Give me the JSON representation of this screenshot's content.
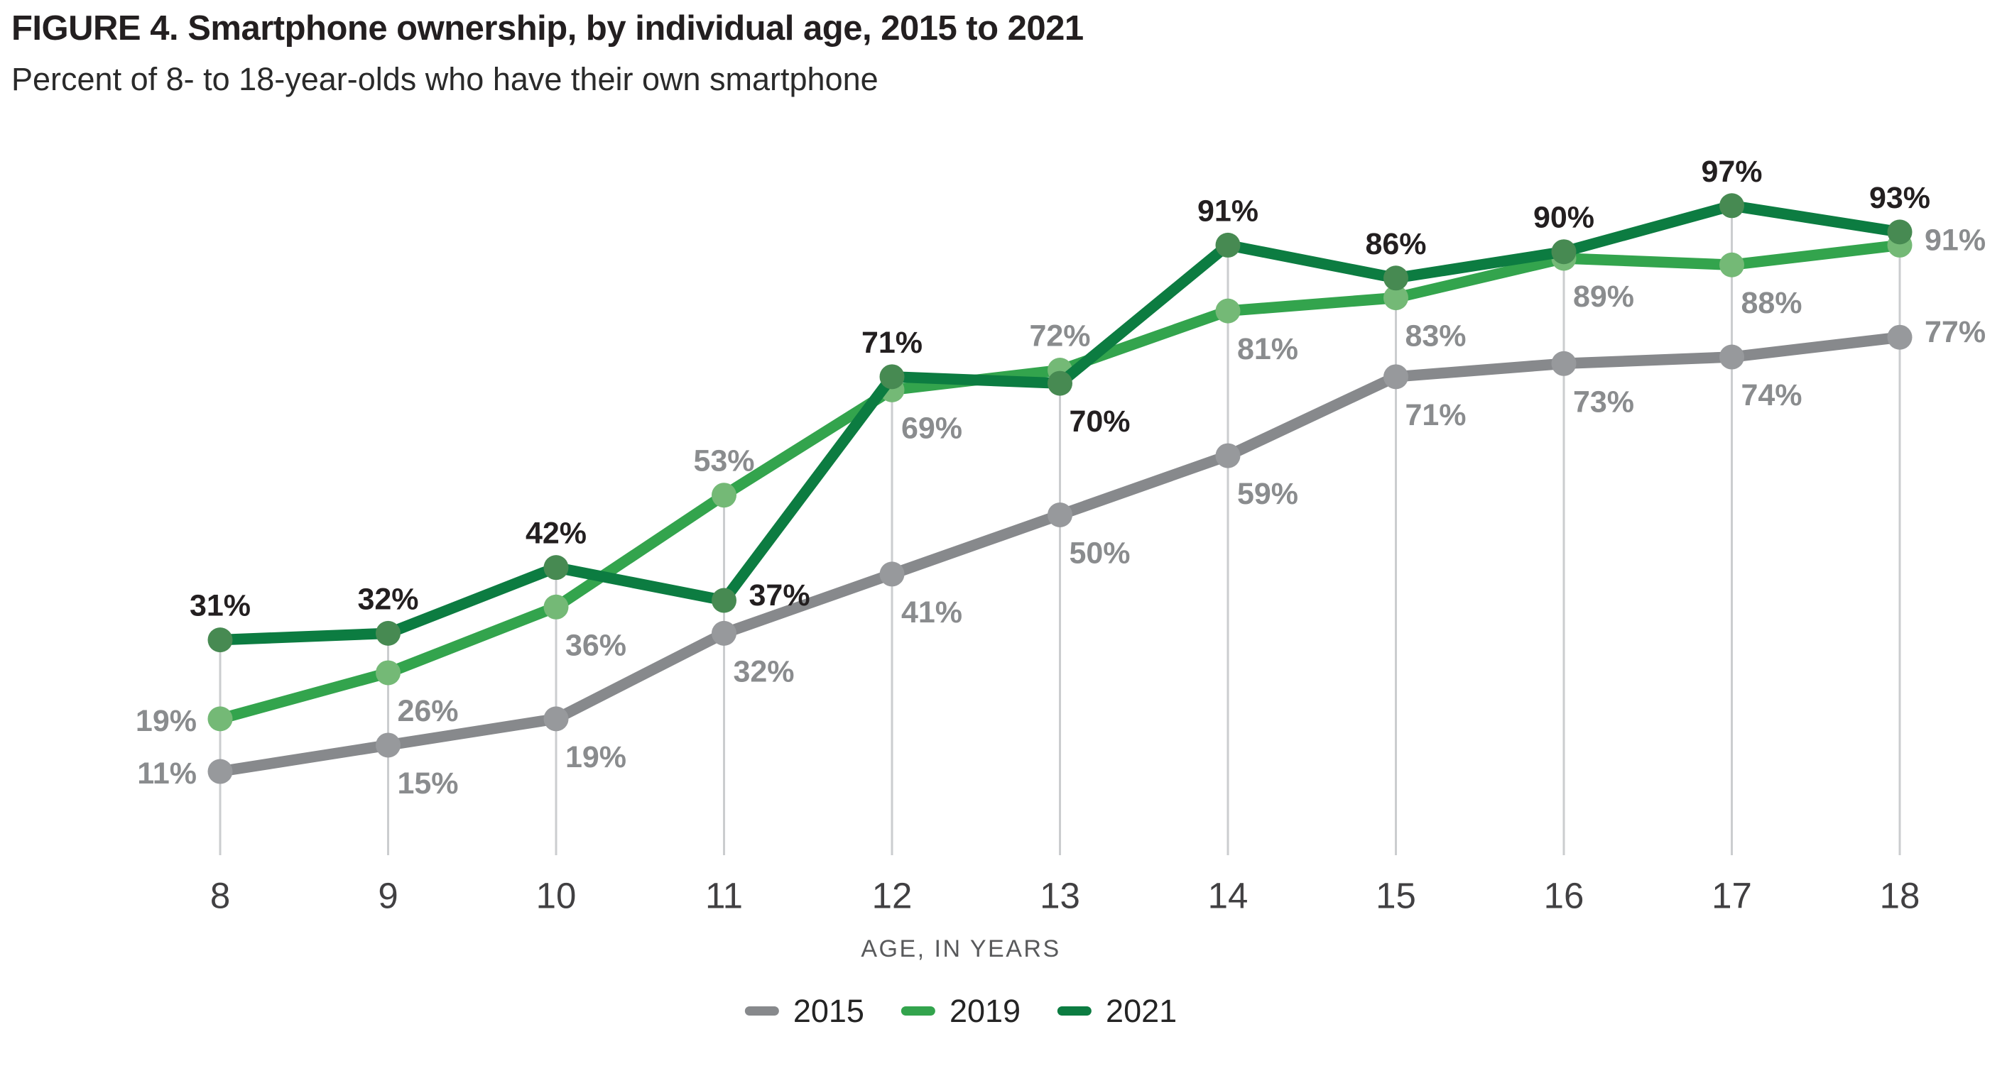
{
  "header": {
    "title": "FIGURE 4. Smartphone ownership, by individual age, 2015 to 2021",
    "subtitle": "Percent of 8- to 18-year-olds who have their own smartphone"
  },
  "chart_data": {
    "type": "line",
    "x": [
      8,
      9,
      10,
      11,
      12,
      13,
      14,
      15,
      16,
      17,
      18
    ],
    "xlabel": "AGE, IN YEARS",
    "ylim": [
      0,
      100
    ],
    "grid": "vertical-column-lines",
    "gridline_color": "#cbcdcf",
    "legend_position": "bottom-center",
    "value_format": "percent",
    "series": [
      {
        "name": "2015",
        "line_color": "#87898c",
        "marker_color": "#97999c",
        "label_color": "#8a8c8e",
        "values": [
          11,
          15,
          19,
          32,
          41,
          50,
          59,
          71,
          73,
          74,
          77
        ],
        "label_positions": [
          "left",
          "below",
          "below",
          "below",
          "below",
          "below",
          "below",
          "below",
          "below",
          "below",
          "right"
        ]
      },
      {
        "name": "2019",
        "line_color": "#33a44d",
        "marker_color": "#74b976",
        "label_color": "#8a8c8e",
        "values": [
          19,
          26,
          36,
          53,
          69,
          72,
          81,
          83,
          89,
          88,
          91
        ],
        "label_positions": [
          "left",
          "below",
          "below",
          "above",
          "below",
          "above",
          "below",
          "below",
          "below",
          "below",
          "right"
        ]
      },
      {
        "name": "2021",
        "line_color": "#0c7c41",
        "marker_color": "#478a52",
        "label_color": "#231f20",
        "values": [
          31,
          32,
          42,
          37,
          71,
          70,
          91,
          86,
          90,
          97,
          93
        ],
        "label_positions": [
          "above",
          "above",
          "above",
          "right",
          "above",
          "below",
          "above",
          "above",
          "above",
          "above",
          "above"
        ]
      }
    ]
  },
  "legend": {
    "items": [
      {
        "label": "2015",
        "color": "#87898c"
      },
      {
        "label": "2019",
        "color": "#33a44d"
      },
      {
        "label": "2021",
        "color": "#0c7c41"
      }
    ]
  }
}
